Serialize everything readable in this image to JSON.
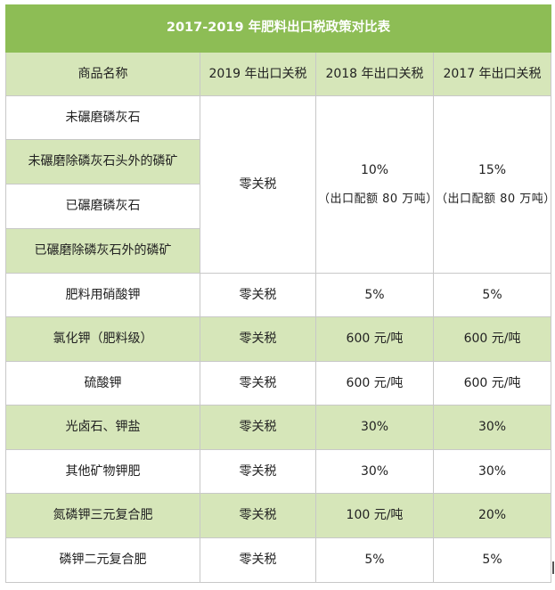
{
  "title": "2017-2019 年肥料出口税政策对比表",
  "headers": [
    "商品名称",
    "2019 年出口关税",
    "2018 年出口关税",
    "2017 年出口关税"
  ],
  "group": {
    "items": [
      "未碾磨磷灰石",
      "未碾磨除磷灰石头外的磷矿",
      "已碾磨磷灰石",
      "已碾磨除磷灰石外的磷矿"
    ],
    "y2019": "零关税",
    "y2018": "10%",
    "y2018_note": "（出口配额 80 万吨）",
    "y2017": "15%",
    "y2017_note": "（出口配额 80 万吨）"
  },
  "rows": [
    {
      "name": "肥料用硝酸钾",
      "y2019": "零关税",
      "y2018": "5%",
      "y2017": "5%"
    },
    {
      "name": "氯化钾（肥料级）",
      "y2019": "零关税",
      "y2018": "600 元/吨",
      "y2017": "600 元/吨"
    },
    {
      "name": "硫酸钾",
      "y2019": "零关税",
      "y2018": "600 元/吨",
      "y2017": "600 元/吨"
    },
    {
      "name": "光卤石、钾盐",
      "y2019": "零关税",
      "y2018": "30%",
      "y2017": "30%"
    },
    {
      "name": "其他矿物钾肥",
      "y2019": "零关税",
      "y2018": "30%",
      "y2017": "30%"
    },
    {
      "name": "氮磷钾三元复合肥",
      "y2019": "零关税",
      "y2018": "100 元/吨",
      "y2017": "20%"
    },
    {
      "name": "磷钾二元复合肥",
      "y2019": "零关税",
      "y2018": "5%",
      "y2017": "5%"
    }
  ],
  "colors": {
    "title_bg": "#8dbd55",
    "header_bg": "#d6e6b9",
    "band_bg": "#d6e6b9",
    "border": "#c8c8c8"
  }
}
